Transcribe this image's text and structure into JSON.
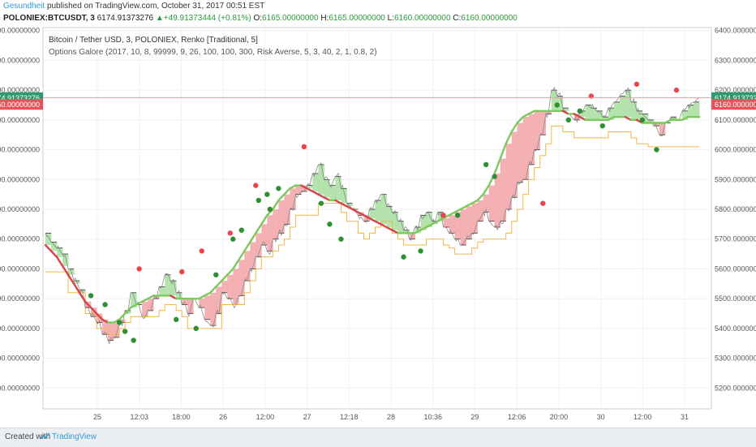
{
  "header": {
    "author": "Gesundheit",
    "published_text": "published on TradingView.com, October 31, 2017 00:51 EST",
    "symbol": "POLONIEX:BTCUSDT, 3",
    "last_price": "6174.91373276",
    "change_arrow": "▲",
    "change": "+49.91373444 (+0.81%)",
    "open_label": "O:",
    "open": "6165.00000000",
    "high_label": "H:",
    "high": "6165.00000000",
    "low_label": "L:",
    "low": "6160.00000000",
    "close_label": "C:",
    "close": "6160.00000000"
  },
  "legend": {
    "line1": "Bitcoin / Tether USD, 3, POLONIEX, Renko [Traditional, 5]",
    "line2": "Options Galore (2017, 10, 8, 99999, 9, 26, 100, 100, 300, Risk Averse, 5, 3, 40, 2, 1, 0.8, 2)"
  },
  "footer": {
    "created_with": "Created with",
    "brand": "TradingView"
  },
  "colors": {
    "price_line": "#8a8a8a",
    "renko_edge": "#333333",
    "fill_red": "#f2a3a6",
    "fill_green": "#a8dea0",
    "ma_red": "#d9434b",
    "ma_green": "#7cc95d",
    "stop_line": "#f0b840",
    "dot_red": "#e8454f",
    "dot_green": "#2f8f35",
    "last_badge": "#2d9a6b",
    "close_badge": "#e8535b",
    "grid": "#eef0f3",
    "axis_text": "#555555"
  },
  "chart_data": {
    "type": "line",
    "ylim": [
      5130,
      6410
    ],
    "y_ticks": [
      "5200.00000000",
      "5300.00000000",
      "5400.00000000",
      "5500.00000000",
      "5600.00000000",
      "5700.00000000",
      "5800.00000000",
      "5900.00000000",
      "6000.00000000",
      "6100.00000000",
      "6200.00000000",
      "6300.00000000",
      "6400.00000000"
    ],
    "x_ticks": [
      "25",
      "12:03",
      "18:00",
      "26",
      "12:00",
      "27",
      "12:18",
      "28",
      "10:36",
      "29",
      "12:06",
      "20:00",
      "30",
      "12:00",
      "31"
    ],
    "price_badges": {
      "last": "6174.91373276",
      "close": "6160.00000000",
      "last_value": 6174.9,
      "close_value": 6160
    },
    "price": [
      5720,
      5690,
      5670,
      5650,
      5600,
      5560,
      5530,
      5470,
      5440,
      5420,
      5380,
      5360,
      5370,
      5420,
      5460,
      5520,
      5480,
      5440,
      5460,
      5500,
      5540,
      5580,
      5560,
      5520,
      5480,
      5450,
      5500,
      5470,
      5430,
      5410,
      5450,
      5520,
      5500,
      5480,
      5510,
      5560,
      5600,
      5640,
      5680,
      5660,
      5700,
      5720,
      5750,
      5800,
      5850,
      5860,
      5880,
      5920,
      5950,
      5900,
      5880,
      5910,
      5870,
      5820,
      5800,
      5780,
      5760,
      5800,
      5830,
      5850,
      5810,
      5790,
      5760,
      5730,
      5700,
      5740,
      5780,
      5790,
      5760,
      5790,
      5740,
      5720,
      5700,
      5680,
      5700,
      5720,
      5760,
      5790,
      5760,
      5740,
      5760,
      5800,
      5840,
      5890,
      5900,
      5950,
      6000,
      6050,
      6120,
      6200,
      6180,
      6140,
      6120,
      6100,
      6130,
      6150,
      6140,
      6130,
      6110,
      6140,
      6160,
      6180,
      6200,
      6160,
      6130,
      6120,
      6100,
      6080,
      6050,
      6090,
      6110,
      6100,
      6130,
      6150,
      6160,
      6175
    ],
    "ma": [
      5680,
      5660,
      5640,
      5610,
      5580,
      5550,
      5520,
      5490,
      5470,
      5450,
      5430,
      5420,
      5420,
      5430,
      5450,
      5470,
      5480,
      5490,
      5500,
      5510,
      5510,
      5510,
      5510,
      5500,
      5500,
      5500,
      5500,
      5500,
      5510,
      5520,
      5540,
      5560,
      5580,
      5600,
      5630,
      5660,
      5690,
      5720,
      5750,
      5780,
      5800,
      5830,
      5850,
      5870,
      5880,
      5880,
      5870,
      5860,
      5850,
      5840,
      5830,
      5830,
      5820,
      5810,
      5800,
      5790,
      5780,
      5770,
      5760,
      5750,
      5740,
      5730,
      5720,
      5720,
      5720,
      5720,
      5730,
      5740,
      5750,
      5760,
      5770,
      5780,
      5790,
      5800,
      5810,
      5820,
      5830,
      5850,
      5880,
      5920,
      5970,
      6020,
      6060,
      6090,
      6110,
      6120,
      6130,
      6130,
      6130,
      6130,
      6130,
      6130,
      6120,
      6120,
      6110,
      6100,
      6100,
      6100,
      6100,
      6100,
      6110,
      6110,
      6110,
      6100,
      6100,
      6090,
      6090,
      6090,
      6090,
      6090,
      6100,
      6100,
      6100,
      6110,
      6110,
      6110
    ],
    "stop": [
      5590,
      5590,
      5590,
      5590,
      5520,
      5520,
      5520,
      5450,
      5450,
      5400,
      5400,
      5380,
      5380,
      5400,
      5420,
      5440,
      5440,
      5440,
      5440,
      5440,
      5460,
      5480,
      5480,
      5460,
      5440,
      5400,
      5400,
      5400,
      5400,
      5400,
      5400,
      5480,
      5480,
      5480,
      5480,
      5520,
      5560,
      5600,
      5640,
      5640,
      5660,
      5680,
      5700,
      5740,
      5780,
      5780,
      5780,
      5780,
      5820,
      5820,
      5820,
      5820,
      5790,
      5760,
      5760,
      5720,
      5700,
      5720,
      5740,
      5760,
      5760,
      5720,
      5700,
      5680,
      5680,
      5680,
      5680,
      5700,
      5700,
      5700,
      5680,
      5670,
      5650,
      5650,
      5650,
      5670,
      5690,
      5700,
      5700,
      5700,
      5700,
      5720,
      5760,
      5800,
      5850,
      5900,
      5940,
      5980,
      6020,
      6080,
      6080,
      6060,
      6060,
      6040,
      6040,
      6040,
      6040,
      6040,
      6040,
      6060,
      6060,
      6060,
      6060,
      6040,
      6020,
      6020,
      6010,
      6010,
      6010,
      6010,
      6010,
      6010,
      6010,
      6010,
      6010,
      6010
    ],
    "sell_signals": [
      [
        33,
        5600
      ],
      [
        48,
        5590
      ],
      [
        55,
        5660
      ],
      [
        65,
        5720
      ],
      [
        74,
        5880
      ],
      [
        91,
        6010
      ],
      [
        140,
        5780
      ],
      [
        175,
        5820
      ],
      [
        192,
        6180
      ],
      [
        208,
        6220
      ],
      [
        222,
        6200
      ]
    ],
    "buy_signals": [
      [
        16,
        5510
      ],
      [
        21,
        5480
      ],
      [
        26,
        5420
      ],
      [
        28,
        5390
      ],
      [
        31,
        5360
      ],
      [
        46,
        5430
      ],
      [
        53,
        5400
      ],
      [
        60,
        5580
      ],
      [
        66,
        5700
      ],
      [
        69,
        5730
      ],
      [
        75,
        5830
      ],
      [
        78,
        5850
      ],
      [
        79,
        5800
      ],
      [
        82,
        5870
      ],
      [
        97,
        5820
      ],
      [
        100,
        5750
      ],
      [
        104,
        5700
      ],
      [
        126,
        5640
      ],
      [
        132,
        5660
      ],
      [
        145,
        5780
      ],
      [
        155,
        5950
      ],
      [
        158,
        5910
      ],
      [
        180,
        6150
      ],
      [
        184,
        6100
      ],
      [
        188,
        6130
      ],
      [
        196,
        6080
      ],
      [
        210,
        6100
      ],
      [
        215,
        6000
      ]
    ],
    "n_slots": 230
  }
}
